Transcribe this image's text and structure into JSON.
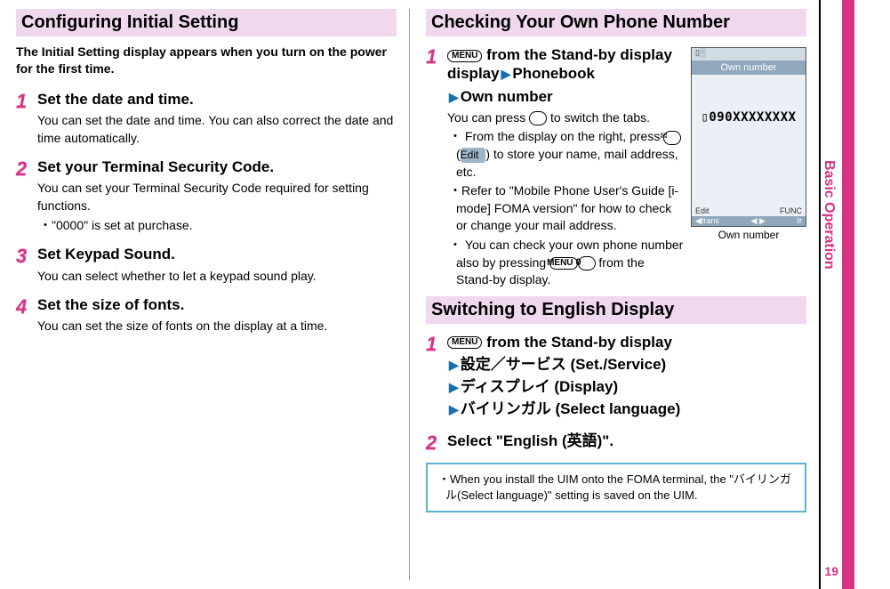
{
  "rail": {
    "label": "Basic Operation",
    "page_number": "19",
    "accent_color": "#d63384"
  },
  "left": {
    "section_title": "Configuring Initial Setting",
    "intro": "The Initial Setting display appears when you turn on the power for the first time.",
    "steps": [
      {
        "n": "1",
        "title": "Set the date and time.",
        "desc": "You can set the date and time. You can also correct the date and time automatically.",
        "bullets": []
      },
      {
        "n": "2",
        "title": "Set your Terminal Security Code.",
        "desc": "You can set your Terminal Security Code required for setting functions.",
        "bullets": [
          "\"0000\" is set at purchase."
        ]
      },
      {
        "n": "3",
        "title": "Set Keypad Sound.",
        "desc": "You can select whether to let a keypad sound play.",
        "bullets": []
      },
      {
        "n": "4",
        "title": "Set the size of fonts.",
        "desc": "You can set the size of fonts on the display at a time.",
        "bullets": []
      }
    ]
  },
  "right": {
    "section1_title": "Checking Your Own Phone Number",
    "step1": {
      "n": "1",
      "menu_label": "MENU",
      "line1_a": " from the Stand-by display",
      "line1_b": "Phonebook",
      "line2": "Own number",
      "desc_pre": "You can press ",
      "desc_post": " to switch the tabs.",
      "bullet1_pre": "From the display on the right, press ",
      "edit_label": "Edit",
      "bullet1_post": ") to store your name, mail address, etc.",
      "bullet2": "Refer to \"Mobile Phone User's Guide [i-mode] FOMA version\" for how to check or change your mail address.",
      "bullet3_pre": "You can check your own phone number also by pressing ",
      "bullet3_post": " from the Stand-by display."
    },
    "phone": {
      "status_left": "▯░",
      "titlebar": "Own number",
      "number": "▯090XXXXXXXX",
      "foot_left": "Edit",
      "foot_right": "FUNC",
      "nav_left": "◀trans",
      "nav_mid": "◀  ▶",
      "nav_right": "Ir",
      "caption": "Own number"
    },
    "section2_title": "Switching to English Display",
    "sw_step1": {
      "n": "1",
      "menu_label": "MENU",
      "line1": " from the Stand-by display",
      "line2": "設定／サービス (Set./Service)",
      "line3": "ディスプレイ (Display)",
      "line4": "バイリンガル (Select language)"
    },
    "sw_step2": {
      "n": "2",
      "title": "Select \"English (英語)\"."
    },
    "note": "When you install the UIM onto the FOMA terminal, the \"バイリンガル(Select language)\" setting is saved on the UIM."
  }
}
